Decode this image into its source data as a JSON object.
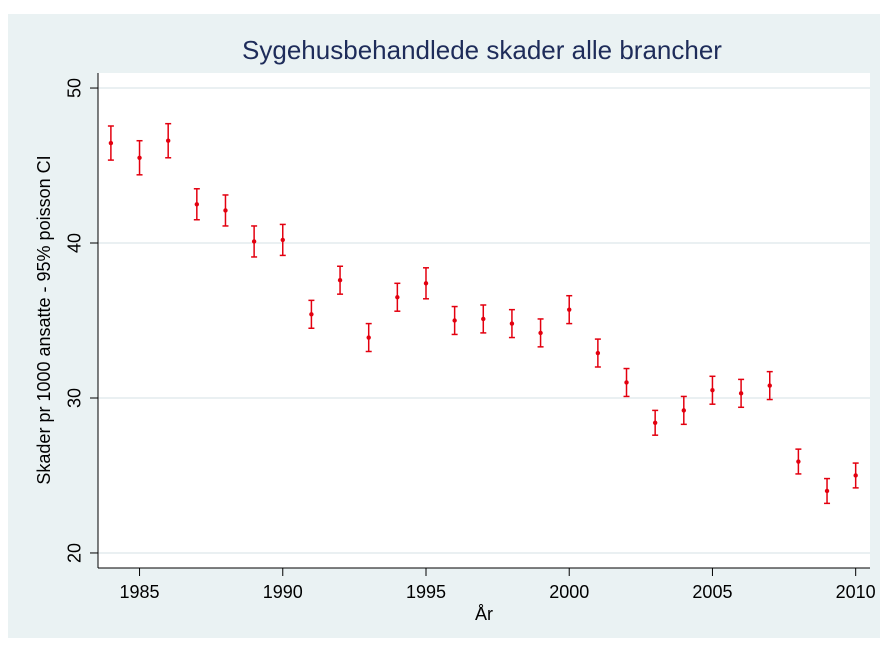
{
  "chart_data": {
    "type": "errorbar",
    "title": "Sygehusbehandlede skader alle brancher",
    "x_label": "År",
    "y_label": "Skader pr 1000 ansatte - 95% poisson CI",
    "x": [
      1984,
      1985,
      1986,
      1987,
      1988,
      1989,
      1990,
      1991,
      1992,
      1993,
      1994,
      1995,
      1996,
      1997,
      1998,
      1999,
      2000,
      2001,
      2002,
      2003,
      2004,
      2005,
      2006,
      2007,
      2008,
      2009,
      2010
    ],
    "values": [
      46.45,
      45.5,
      46.6,
      42.5,
      42.1,
      40.1,
      40.2,
      35.4,
      37.6,
      33.9,
      36.5,
      37.4,
      35.0,
      35.1,
      34.8,
      34.2,
      35.7,
      32.9,
      31.0,
      28.4,
      29.2,
      30.5,
      30.3,
      30.8,
      25.9,
      24.0,
      25.0
    ],
    "errors": [
      1.1,
      1.1,
      1.1,
      1.0,
      1.0,
      1.0,
      1.0,
      0.9,
      0.9,
      0.9,
      0.9,
      1.0,
      0.9,
      0.9,
      0.9,
      0.9,
      0.9,
      0.9,
      0.9,
      0.8,
      0.9,
      0.9,
      0.9,
      0.9,
      0.8,
      0.8,
      0.8
    ],
    "color": "#e3000f",
    "xlim": [
      1983.55,
      2010.5
    ],
    "xticks": [
      1985,
      1990,
      1995,
      2000,
      2005,
      2010
    ],
    "ylim": [
      19.03,
      50.97
    ],
    "yticks": [
      20,
      30,
      40,
      50
    ],
    "grid": true
  }
}
